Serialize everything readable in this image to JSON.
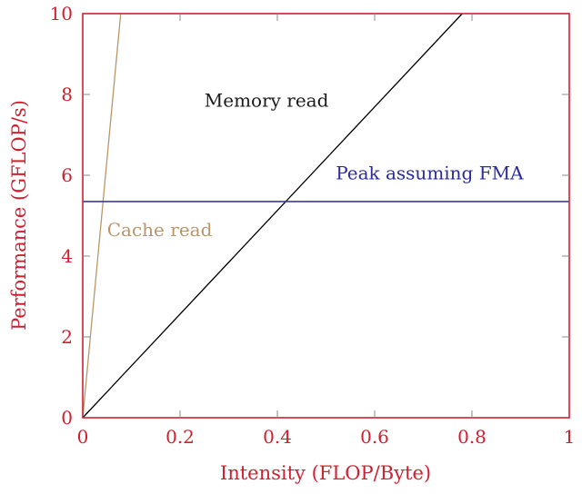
{
  "chart_data": {
    "type": "line",
    "title": "",
    "xlabel": "Intensity (FLOP/Byte)",
    "ylabel": "Performance (GFLOP/s)",
    "xlim": [
      0,
      1
    ],
    "ylim": [
      0,
      10
    ],
    "x_ticks": [
      "0",
      "0.2",
      "0.4",
      "0.6",
      "0.8",
      "1"
    ],
    "y_ticks": [
      "0",
      "2",
      "4",
      "6",
      "8",
      "10"
    ],
    "grid": false,
    "axis_color": "#d02030",
    "series": [
      {
        "name": "Cache read",
        "type": "line",
        "x": [
          0,
          0.078
        ],
        "y": [
          0,
          10
        ],
        "slope": 128,
        "color": "#b8966a"
      },
      {
        "name": "Memory read",
        "type": "line",
        "x": [
          0,
          0.78
        ],
        "y": [
          0,
          10
        ],
        "slope": 12.8,
        "color": "#000000"
      },
      {
        "name": "Peak assuming FMA",
        "type": "hline",
        "x": [
          0,
          1
        ],
        "y": [
          5.35,
          5.35
        ],
        "color": "#3a3aa0"
      }
    ],
    "annotations": [
      {
        "text": "Memory read",
        "x": 0.25,
        "y": 7.7,
        "color": "#1a1a1a"
      },
      {
        "text": "Peak assuming FMA",
        "x": 0.52,
        "y": 5.9,
        "color": "#2a2a9a"
      },
      {
        "text": "Cache read",
        "x": 0.05,
        "y": 4.5,
        "color": "#b8966a"
      }
    ]
  }
}
